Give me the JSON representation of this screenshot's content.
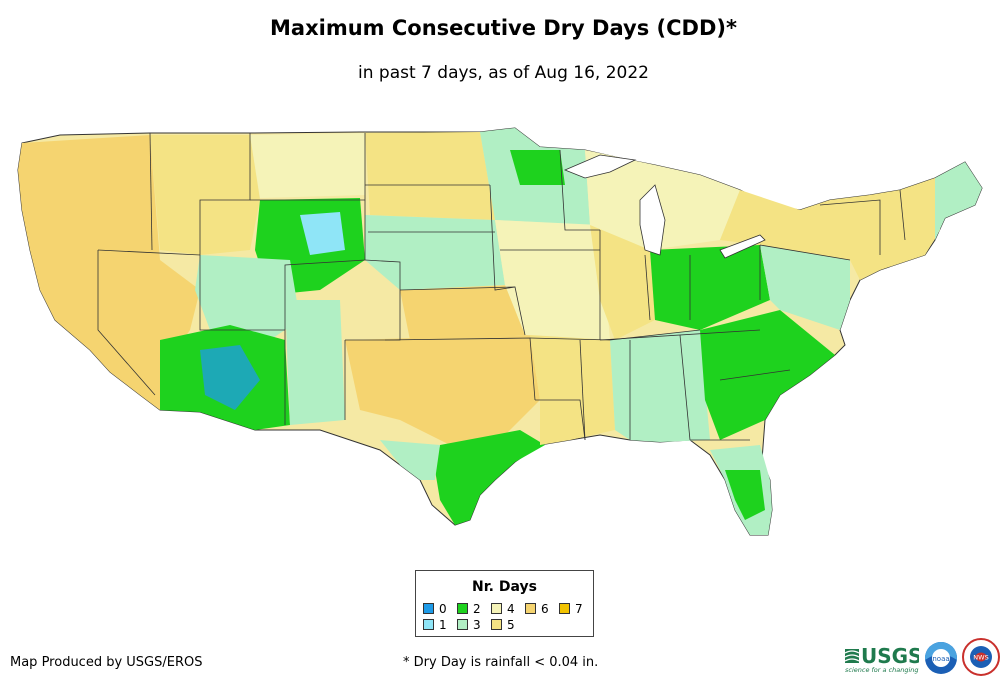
{
  "title": "Maximum Consecutive Dry Days (CDD)*",
  "subtitle": "in past 7 days, as of Aug 16, 2022",
  "legend": {
    "title": "Nr. Days",
    "items": [
      {
        "label": "0",
        "color": "#1e9be8"
      },
      {
        "label": "1",
        "color": "#8fe5f7"
      },
      {
        "label": "2",
        "color": "#1ed21e"
      },
      {
        "label": "3",
        "color": "#b1efc4"
      },
      {
        "label": "4",
        "color": "#f5f3b8"
      },
      {
        "label": "5",
        "color": "#f4e384"
      },
      {
        "label": "6",
        "color": "#f5d470"
      },
      {
        "label": "7",
        "color": "#f2c300"
      }
    ]
  },
  "credit": "Map Produced by USGS/EROS",
  "footnote": "* Dry Day is rainfall < 0.04 in.",
  "logos": {
    "usgs": "USGS",
    "usgs_tagline": "science for a changing world",
    "noaa": "noaa",
    "nws": "NWS"
  }
}
